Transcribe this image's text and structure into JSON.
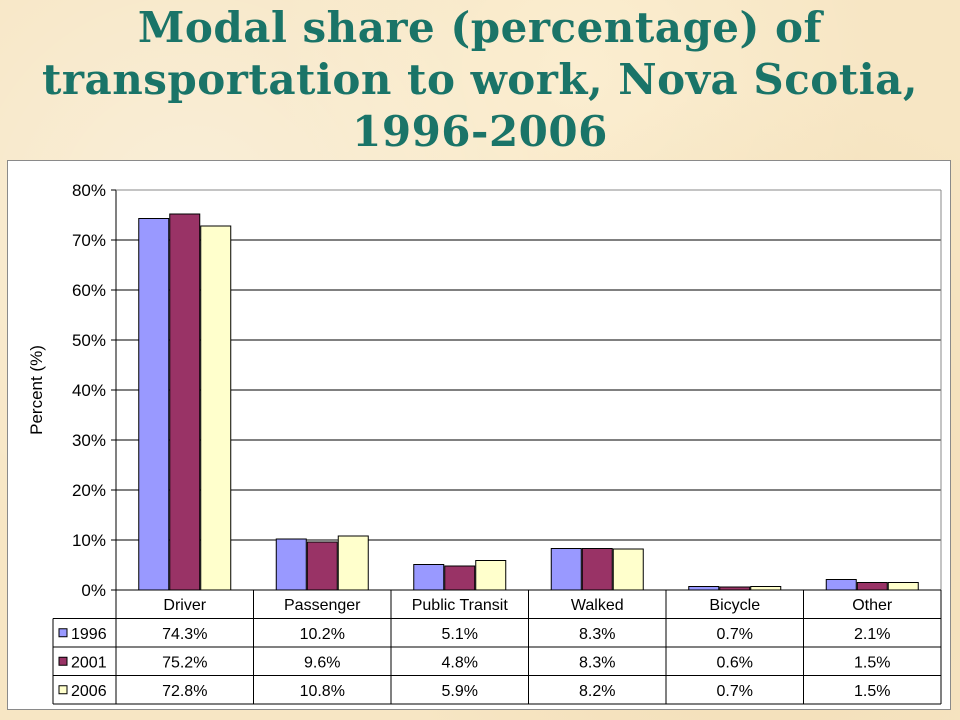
{
  "slide": {
    "title": "Modal share (percentage) of transportation to work, Nova Scotia, 1996-2006"
  },
  "chart_data": {
    "type": "bar",
    "title": "",
    "xlabel": "",
    "ylabel": "Percent (%)",
    "ylim": [
      0,
      80
    ],
    "yticks": [
      "0%",
      "10%",
      "20%",
      "30%",
      "40%",
      "50%",
      "60%",
      "70%",
      "80%"
    ],
    "grid": true,
    "legend": "data-table-left",
    "categories": [
      "Driver",
      "Passenger",
      "Public Transit",
      "Walked",
      "Bicycle",
      "Other"
    ],
    "series": [
      {
        "name": "1996",
        "color": "#9999ff",
        "values": [
          74.3,
          10.2,
          5.1,
          8.3,
          0.7,
          2.1
        ],
        "labels": [
          "74.3%",
          "10.2%",
          "5.1%",
          "8.3%",
          "0.7%",
          "2.1%"
        ]
      },
      {
        "name": "2001",
        "color": "#993366",
        "values": [
          75.2,
          9.6,
          4.8,
          8.3,
          0.6,
          1.5
        ],
        "labels": [
          "75.2%",
          "9.6%",
          "4.8%",
          "8.3%",
          "0.6%",
          "1.5%"
        ]
      },
      {
        "name": "2006",
        "color": "#ffffcc",
        "values": [
          72.8,
          10.8,
          5.9,
          8.2,
          0.7,
          1.5
        ],
        "labels": [
          "72.8%",
          "10.8%",
          "5.9%",
          "8.2%",
          "0.7%",
          "1.5%"
        ]
      }
    ]
  }
}
